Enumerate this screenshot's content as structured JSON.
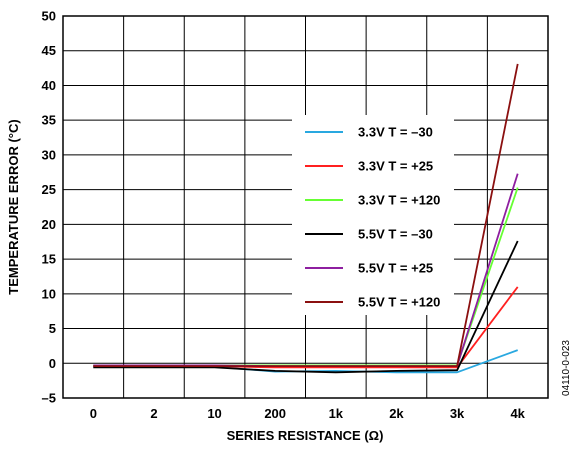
{
  "chart_data": {
    "type": "line",
    "xlabel": "SERIES RESISTANCE (Ω)",
    "ylabel": "TEMPERATURE ERROR (°C)",
    "categories": [
      "0",
      "2",
      "10",
      "200",
      "1k",
      "2k",
      "3k",
      "4k"
    ],
    "ylim": [
      -5,
      50
    ],
    "yticks": [
      "–5",
      "0",
      "5",
      "10",
      "15",
      "20",
      "25",
      "30",
      "35",
      "40",
      "45",
      "50"
    ],
    "ytick_values": [
      -5,
      0,
      5,
      10,
      15,
      20,
      25,
      30,
      35,
      40,
      45,
      50
    ],
    "grid": true,
    "legend_position": "center-right",
    "series": [
      {
        "name": "3.3V T = –30",
        "color": "#29a8e0",
        "values": [
          -0.5,
          -0.5,
          -0.5,
          -1.2,
          -1.1,
          -1.3,
          -1.3,
          1.9
        ]
      },
      {
        "name": "3.3V T = +25",
        "color": "#ff2020",
        "values": [
          -0.4,
          -0.4,
          -0.4,
          -0.6,
          -0.6,
          -0.6,
          -0.6,
          11.0
        ]
      },
      {
        "name": "3.3V T = +120",
        "color": "#66ff33",
        "values": [
          -0.3,
          -0.3,
          -0.3,
          -0.3,
          -0.3,
          -0.3,
          -0.3,
          25.3
        ]
      },
      {
        "name": "5.5V T = –30",
        "color": "#000000",
        "values": [
          -0.6,
          -0.6,
          -0.6,
          -1.1,
          -1.3,
          -1.1,
          -1.0,
          17.6
        ]
      },
      {
        "name": "5.5V T = +25",
        "color": "#8e1fa0",
        "values": [
          -0.3,
          -0.3,
          -0.3,
          -0.4,
          -0.4,
          -0.4,
          -0.4,
          27.3
        ]
      },
      {
        "name": "5.5V T = +120",
        "color": "#8b1010",
        "values": [
          -0.4,
          -0.4,
          -0.4,
          -0.4,
          -0.4,
          -0.4,
          -0.4,
          43.1
        ]
      }
    ]
  },
  "figure_id": "04110-0-023"
}
